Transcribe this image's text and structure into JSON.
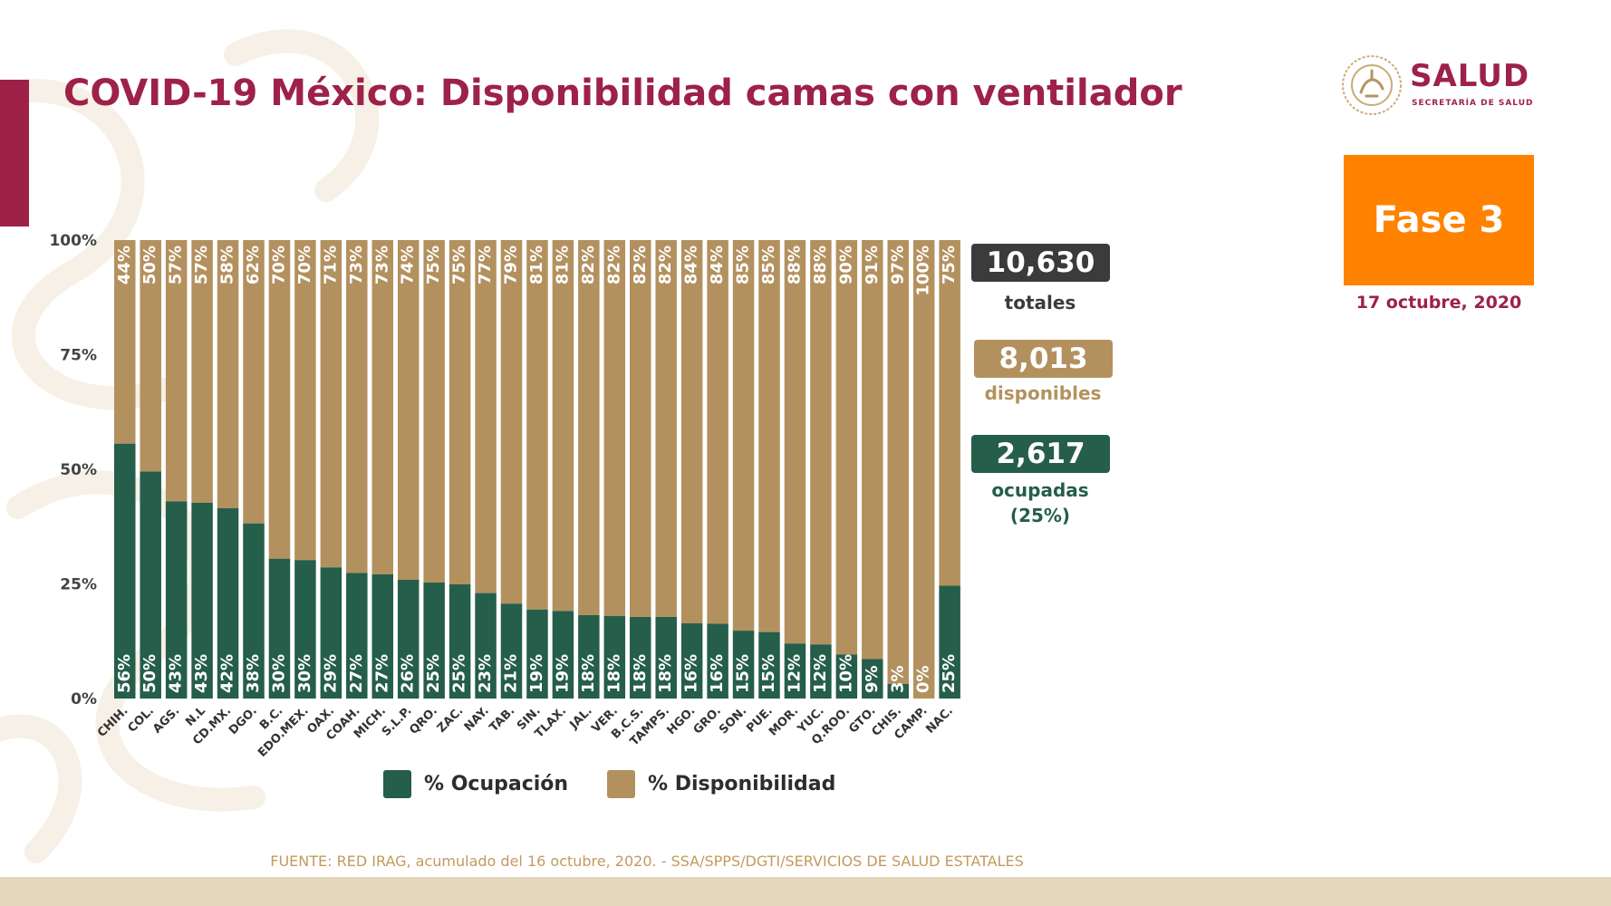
{
  "header": {
    "title": "COVID-19 México: Disponibilidad camas con ventilador",
    "logo_text": "SALUD",
    "logo_subtitle": "SECRETARÍA DE SALUD",
    "phase": "Fase 3",
    "date": "17 octubre, 2020"
  },
  "stats": {
    "total_value": "10,630",
    "total_label": "totales",
    "available_value": "8,013",
    "available_label": "disponibles",
    "occupied_value": "2,617",
    "occupied_label": "ocupadas",
    "occupied_pct": "(25%)"
  },
  "legend": {
    "occupied": "% Ocupación",
    "available": "% Disponibilidad"
  },
  "source": "FUENTE: RED IRAG, acumulado del 16 octubre, 2020. -  SSA/SPPS/DGTI/SERVICIOS DE SALUD ESTATALES",
  "colors": {
    "occupied": "#255e4a",
    "available": "#b3915f",
    "title": "#9d2148",
    "phase": "#ff8200",
    "total_box": "#3b3b3b"
  },
  "chart_data": {
    "type": "bar",
    "stacked": true,
    "title": "COVID-19 México: Disponibilidad camas con ventilador",
    "ylim": [
      0,
      100
    ],
    "yticks": [
      "0%",
      "25%",
      "50%",
      "75%",
      "100%"
    ],
    "categories": [
      "CHIH.",
      "COL.",
      "AGS.",
      "N.L",
      "CD.MX.",
      "DGO.",
      "B.C.",
      "EDO.MEX.",
      "OAX.",
      "COAH.",
      "MICH.",
      "S.L.P.",
      "QRO.",
      "ZAC.",
      "NAY.",
      "TAB.",
      "SIN.",
      "TLAX.",
      "JAL.",
      "VER.",
      "B.C.S.",
      "TAMPS.",
      "HGO.",
      "GRO.",
      "SON.",
      "PUE.",
      "MOR.",
      "YUC.",
      "Q.ROO.",
      "GTO.",
      "CHIS.",
      "CAMP.",
      "NAC."
    ],
    "series": [
      {
        "name": "% Ocupación",
        "values": [
          55.6,
          49.5,
          43.0,
          42.7,
          41.5,
          38.2,
          30.5,
          30.2,
          28.6,
          27.4,
          27.1,
          25.9,
          25.3,
          24.9,
          23.0,
          20.7,
          19.4,
          19.1,
          18.2,
          18.0,
          17.8,
          17.8,
          16.4,
          16.3,
          14.8,
          14.5,
          12.0,
          11.8,
          9.6,
          8.6,
          3.2,
          0.0,
          24.6
        ],
        "labels": [
          "56%",
          "50%",
          "43%",
          "43%",
          "42%",
          "38%",
          "30%",
          "30%",
          "29%",
          "27%",
          "27%",
          "26%",
          "25%",
          "25%",
          "23%",
          "21%",
          "19%",
          "19%",
          "18%",
          "18%",
          "18%",
          "18%",
          "16%",
          "16%",
          "15%",
          "15%",
          "12%",
          "12%",
          "10%",
          "9%",
          "3%",
          "0%",
          "25%"
        ]
      },
      {
        "name": "% Disponibilidad",
        "values": [
          44.4,
          50.5,
          57.0,
          57.3,
          58.5,
          61.8,
          69.5,
          69.8,
          71.4,
          72.6,
          72.9,
          74.1,
          74.7,
          75.1,
          77.0,
          79.3,
          80.6,
          80.9,
          81.8,
          82.0,
          82.2,
          82.2,
          83.6,
          83.7,
          85.2,
          85.5,
          88.0,
          88.2,
          90.4,
          91.4,
          96.8,
          100.0,
          75.4
        ],
        "labels": [
          "44%",
          "50%",
          "57%",
          "57%",
          "58%",
          "62%",
          "70%",
          "70%",
          "71%",
          "73%",
          "73%",
          "74%",
          "75%",
          "75%",
          "77%",
          "79%",
          "81%",
          "81%",
          "82%",
          "82%",
          "82%",
          "82%",
          "84%",
          "84%",
          "85%",
          "85%",
          "88%",
          "88%",
          "90%",
          "91%",
          "97%",
          "100%",
          "75%"
        ]
      }
    ]
  }
}
